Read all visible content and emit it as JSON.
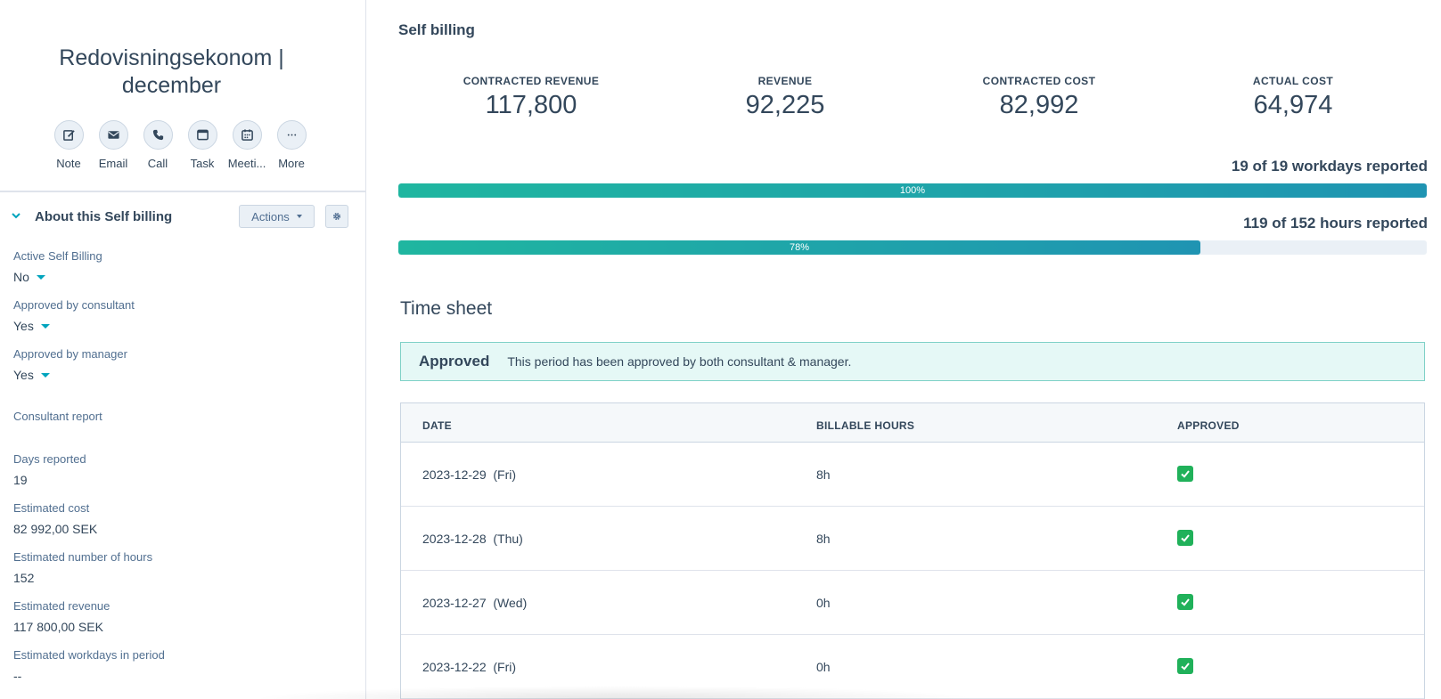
{
  "record": {
    "title": "Redovisningsekonom | december"
  },
  "quick_actions": [
    {
      "label": "Note",
      "icon": "pencil-icon"
    },
    {
      "label": "Email",
      "icon": "envelope-icon"
    },
    {
      "label": "Call",
      "icon": "phone-icon"
    },
    {
      "label": "Task",
      "icon": "task-icon"
    },
    {
      "label": "Meeti...",
      "icon": "calendar-icon"
    },
    {
      "label": "More",
      "icon": "ellipsis-icon"
    }
  ],
  "about": {
    "title": "About this Self billing",
    "actions_label": "Actions",
    "properties": [
      {
        "label": "Active Self Billing",
        "value": "No"
      },
      {
        "label": "Approved by consultant",
        "value": "Yes"
      },
      {
        "label": "Approved by manager",
        "value": "Yes"
      },
      {
        "label": "Consultant report",
        "value": ""
      },
      {
        "label": "Days reported",
        "value": "19"
      },
      {
        "label": "Estimated cost",
        "value": "82 992,00 SEK"
      },
      {
        "label": "Estimated number of hours",
        "value": "152"
      },
      {
        "label": "Estimated revenue",
        "value": "117 800,00 SEK"
      },
      {
        "label": "Estimated workdays in period",
        "value": "--"
      }
    ]
  },
  "main": {
    "title": "Self billing",
    "kpis": [
      {
        "label": "CONTRACTED REVENUE",
        "value": "117,800"
      },
      {
        "label": "REVENUE",
        "value": "92,225"
      },
      {
        "label": "CONTRACTED COST",
        "value": "82,992"
      },
      {
        "label": "ACTUAL COST",
        "value": "64,974"
      }
    ],
    "progress": [
      {
        "label": "19 of 19 workdays reported",
        "percent": 100,
        "percent_label": "100%"
      },
      {
        "label": "119 of 152 hours reported",
        "percent": 78,
        "percent_label": "78%"
      }
    ],
    "timesheet": {
      "title": "Time sheet",
      "alert_title": "Approved",
      "alert_text": "This period has been approved by both consultant & manager.",
      "headers": [
        "DATE",
        "BILLABLE HOURS",
        "APPROVED"
      ],
      "rows": [
        {
          "date": "2023-12-29  (Fri)",
          "hours": "8h",
          "approved": true
        },
        {
          "date": "2023-12-28  (Thu)",
          "hours": "8h",
          "approved": true
        },
        {
          "date": "2023-12-27  (Wed)",
          "hours": "0h",
          "approved": true
        },
        {
          "date": "2023-12-22  (Fri)",
          "hours": "0h",
          "approved": true
        }
      ]
    }
  },
  "colors": {
    "accent": "#00a4bd",
    "progress_start": "#1fb6a0",
    "progress_end": "#1f94b2",
    "check": "#20b15a",
    "alert_bg": "#e5f8f6"
  }
}
